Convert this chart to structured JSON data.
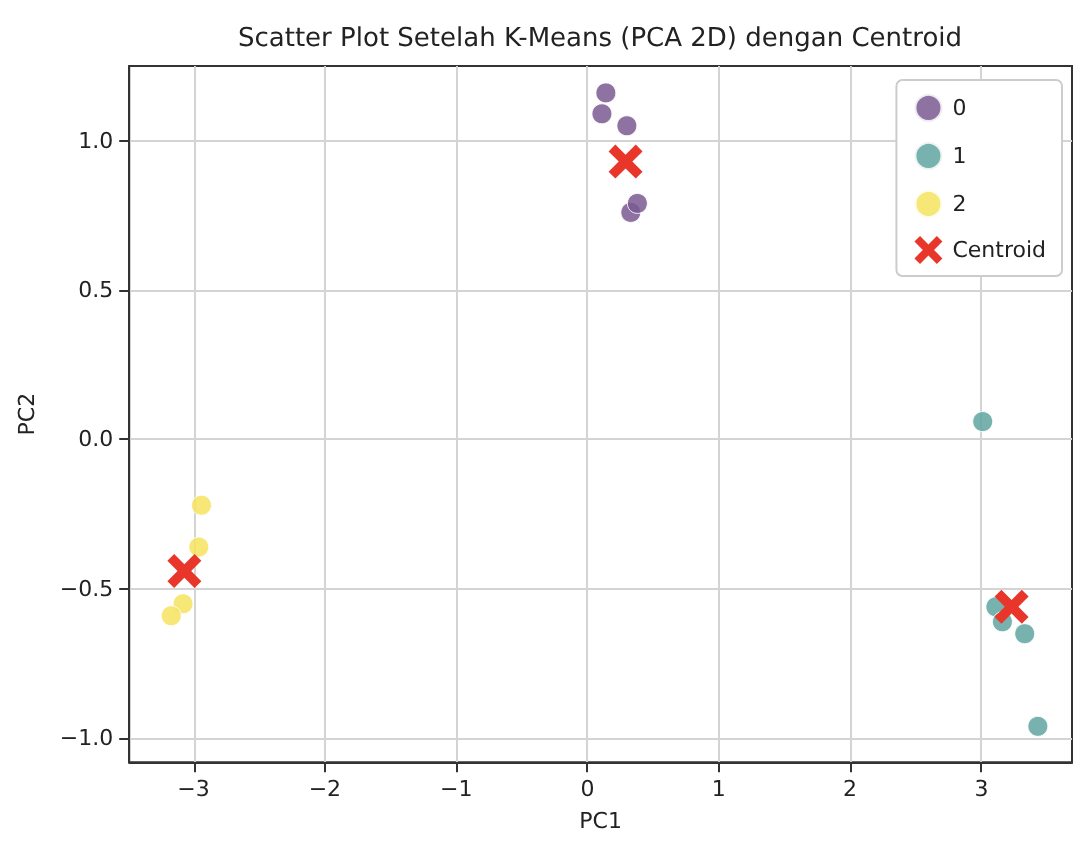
{
  "chart_data": {
    "type": "scatter",
    "title": "Scatter Plot Setelah K-Means (PCA 2D) dengan Centroid",
    "xlabel": "PC1",
    "ylabel": "PC2",
    "series": [
      {
        "name": "0",
        "color": "#7a5a92",
        "marker": "circle",
        "x": [
          0.14,
          0.11,
          0.3,
          0.33,
          0.38
        ],
        "values": [
          1.16,
          1.09,
          1.05,
          0.76,
          0.79
        ]
      },
      {
        "name": "1",
        "color": "#5fa5a0",
        "marker": "circle",
        "x": [
          3.01,
          3.11,
          3.16,
          3.33,
          3.43
        ],
        "values": [
          0.06,
          -0.56,
          -0.61,
          -0.65,
          -0.96
        ]
      },
      {
        "name": "2",
        "color": "#f4e35e",
        "marker": "circle",
        "x": [
          -2.94,
          -2.96,
          -3.08,
          -3.17
        ],
        "values": [
          -0.22,
          -0.36,
          -0.55,
          -0.59
        ]
      },
      {
        "name": "Centroid",
        "color": "#e8372a",
        "marker": "cross",
        "x": [
          0.29,
          3.23,
          -3.07
        ],
        "values": [
          0.93,
          -0.56,
          -0.44
        ]
      }
    ],
    "xlim": [
      -3.49,
      3.69
    ],
    "ylim": [
      -1.08,
      1.25
    ],
    "xticks": [
      {
        "value": -3,
        "label": "−3"
      },
      {
        "value": -2,
        "label": "−2"
      },
      {
        "value": -1,
        "label": "−1"
      },
      0,
      1,
      2,
      3
    ],
    "yticks": [
      {
        "value": -1,
        "label": "−1.0"
      },
      {
        "value": -0.5,
        "label": "−0.5"
      },
      {
        "value": 0,
        "label": "0.0"
      },
      {
        "value": 0.5,
        "label": "0.5"
      },
      {
        "value": 1,
        "label": "1.0"
      }
    ],
    "grid": true,
    "legend": "top right"
  }
}
